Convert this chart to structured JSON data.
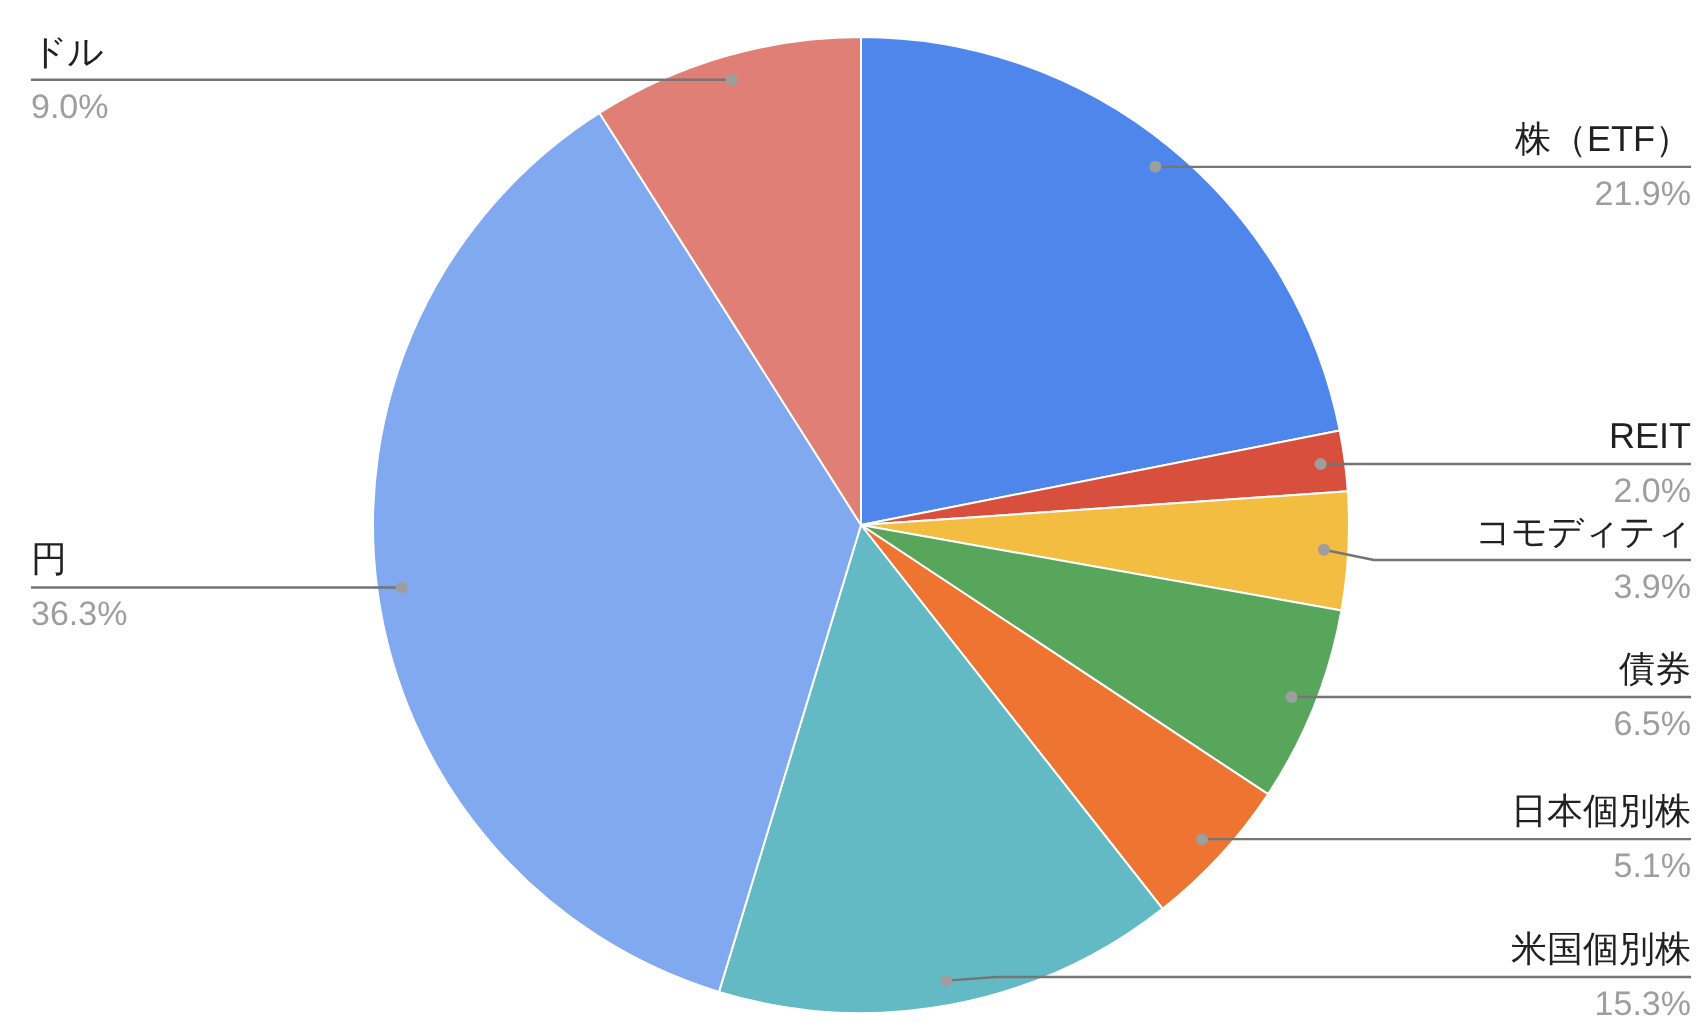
{
  "chart_data": {
    "type": "pie",
    "categories": [
      "株（ETF）",
      "REIT",
      "コモディティ",
      "債券",
      "日本個別株",
      "米国個別株",
      "円",
      "ドル"
    ],
    "values": [
      21.9,
      2.0,
      3.9,
      6.5,
      5.1,
      15.3,
      36.3,
      9.0
    ],
    "value_labels": [
      "21.9%",
      "2.0%",
      "3.9%",
      "6.5%",
      "5.1%",
      "15.3%",
      "36.3%",
      "9.0%"
    ],
    "colors": [
      "#4f86ec",
      "#d94f3d",
      "#f3bd42",
      "#58a55c",
      "#ed7431",
      "#64bac4",
      "#81a9f0",
      "#e07f75"
    ]
  }
}
